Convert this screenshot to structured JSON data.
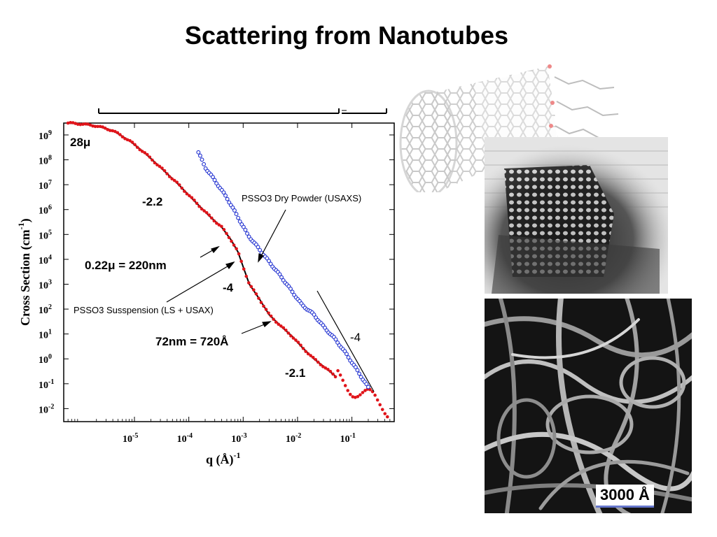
{
  "title": "Scattering from Nanotubes",
  "scale_bar_label": "3000 Å",
  "chart_data": {
    "type": "scatter",
    "title": "",
    "xlabel_main": "q (Å)",
    "xlabel_sup": "-1",
    "ylabel_main": "Cross Section (cm",
    "ylabel_sup": "-1",
    "ylabel_close": ")",
    "x_scale": "log",
    "y_scale": "log",
    "xlim": [
      5e-07,
      0.6
    ],
    "ylim": [
      0.003,
      3000000000.0
    ],
    "grid": false,
    "x_ticks": [
      {
        "value": 1e-05,
        "base": "10",
        "exp": "-5"
      },
      {
        "value": 0.0001,
        "base": "10",
        "exp": "-4"
      },
      {
        "value": 0.001,
        "base": "10",
        "exp": "-3"
      },
      {
        "value": 0.01,
        "base": "10",
        "exp": "-2"
      },
      {
        "value": 0.1,
        "base": "10",
        "exp": "-1"
      }
    ],
    "y_ticks": [
      {
        "value": 1000000000.0,
        "base": "10",
        "exp": "9"
      },
      {
        "value": 100000000.0,
        "base": "10",
        "exp": "8"
      },
      {
        "value": 10000000.0,
        "base": "10",
        "exp": "7"
      },
      {
        "value": 1000000.0,
        "base": "10",
        "exp": "6"
      },
      {
        "value": 100000.0,
        "base": "10",
        "exp": "5"
      },
      {
        "value": 10000.0,
        "base": "10",
        "exp": "4"
      },
      {
        "value": 1000.0,
        "base": "10",
        "exp": "3"
      },
      {
        "value": 100.0,
        "base": "10",
        "exp": "2"
      },
      {
        "value": 10.0,
        "base": "10",
        "exp": "1"
      },
      {
        "value": 1,
        "base": "10",
        "exp": "0"
      },
      {
        "value": 0.1,
        "base": "10",
        "exp": "-1"
      },
      {
        "value": 0.01,
        "base": "10",
        "exp": "-2"
      }
    ],
    "series": [
      {
        "name": "PSSO3 Susspension (LS + USAX)",
        "color": "#e0141a",
        "marker": "filled-circle",
        "fit_color": "#000000",
        "x": [
          6e-07,
          1e-06,
          2e-06,
          4e-06,
          8e-06,
          1.5e-05,
          3e-05,
          6e-05,
          0.00012,
          0.00025,
          0.0004,
          0.0006,
          0.0008,
          0.001,
          0.0013,
          0.002,
          0.003,
          0.005,
          0.008,
          0.012,
          0.02,
          0.03,
          0.05,
          0.1,
          0.2,
          0.3,
          0.45
        ],
        "y": [
          3000000000.0,
          2800000000.0,
          2300000000.0,
          1500000000.0,
          600000000.0,
          200000000.0,
          50000000.0,
          12000000.0,
          2500000.0,
          500000.0,
          200000.0,
          60000.0,
          20000.0,
          5000.0,
          1000.0,
          250,
          60,
          20,
          8,
          3,
          1,
          0.5,
          0.2,
          0.07,
          0.03,
          0.015,
          0.01
        ]
      },
      {
        "name": "PSSO3 Dry Powder (USAXS)",
        "color": "#1f2fd0",
        "marker": "open-circle",
        "x": [
          0.00015,
          0.0002,
          0.0003,
          0.0005,
          0.0008,
          0.0012,
          0.002,
          0.003,
          0.005,
          0.008,
          0.012,
          0.02,
          0.03,
          0.05,
          0.08,
          0.12,
          0.2
        ],
        "y": [
          200000000.0,
          50000000.0,
          15000000.0,
          3000000.0,
          500000.0,
          100000.0,
          25000.0,
          8000.0,
          2000.0,
          500,
          150,
          60,
          20,
          6,
          1.5,
          0.4,
          0.07
        ]
      }
    ],
    "annotations": {
      "size_28": "28μ",
      "slope_a": "-2.2",
      "size_022": "0.22μ = 220nm",
      "slope_b": "-4",
      "label_suspension": "PSSO3 Susspension (LS + USAX)",
      "label_powder": "PSSO3 Dry Powder (USAXS)",
      "size_72": "72nm = 720Å",
      "slope_c": "-4",
      "slope_d": "-2.1"
    }
  }
}
